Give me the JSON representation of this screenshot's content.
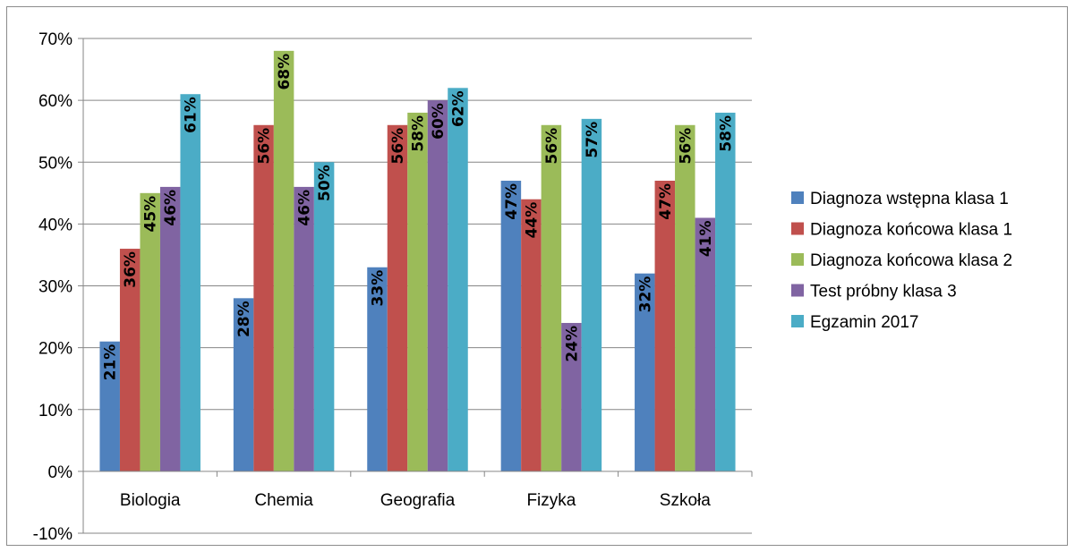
{
  "chart_data": {
    "type": "bar",
    "categories": [
      "Biologia",
      "Chemia",
      "Geografia",
      "Fizyka",
      "Szkoła"
    ],
    "series": [
      {
        "name": "Diagnoza wstępna klasa 1",
        "color": "#4f81bd",
        "values": [
          21,
          28,
          33,
          47,
          32
        ]
      },
      {
        "name": "Diagnoza końcowa klasa 1",
        "color": "#c0504d",
        "values": [
          36,
          56,
          56,
          44,
          47
        ]
      },
      {
        "name": "Diagnoza końcowa klasa 2",
        "color": "#9bbb59",
        "values": [
          45,
          68,
          58,
          56,
          56
        ]
      },
      {
        "name": "Test próbny klasa 3",
        "color": "#8064a2",
        "values": [
          46,
          46,
          60,
          24,
          41
        ]
      },
      {
        "name": "Egzamin 2017",
        "color": "#4bacc6",
        "values": [
          61,
          50,
          62,
          57,
          58
        ]
      }
    ],
    "value_format": "percent",
    "ylim": [
      -10,
      70
    ],
    "yticks": [
      -10,
      0,
      10,
      20,
      30,
      40,
      50,
      60,
      70
    ],
    "ytick_labels": [
      "-10%",
      "0%",
      "10%",
      "20%",
      "30%",
      "40%",
      "50%",
      "60%",
      "70%"
    ],
    "grid": "horizontal",
    "legend_position": "right",
    "data_labels": "rotated, inside bar end",
    "title": "",
    "xlabel": "",
    "ylabel": ""
  }
}
